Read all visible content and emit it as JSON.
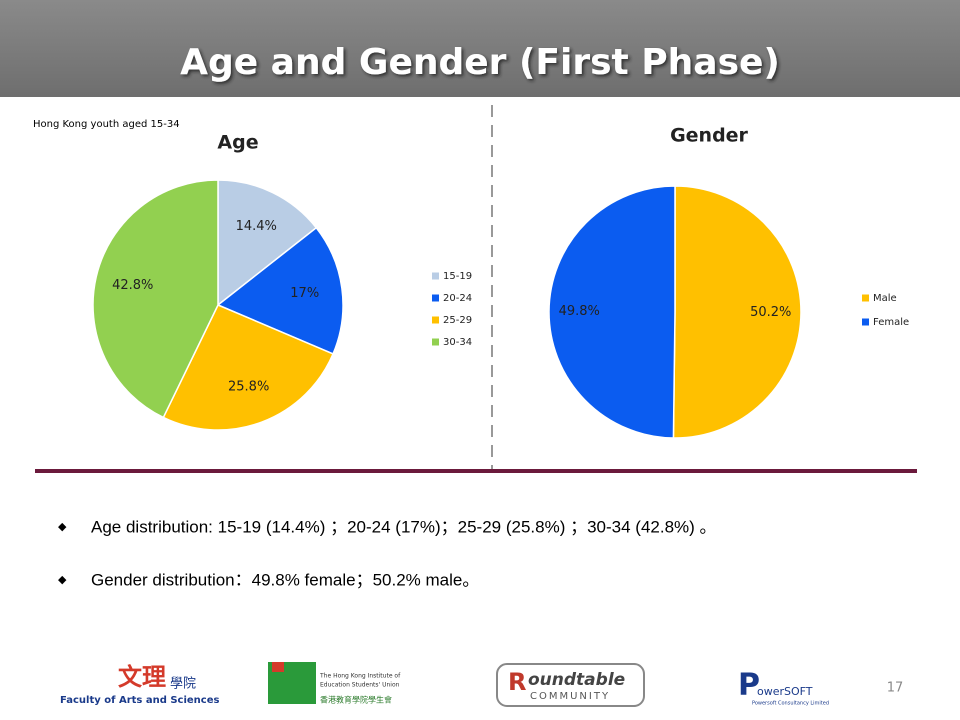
{
  "title": "Age and Gender (First Phase)",
  "subtitle": "Hong Kong youth aged 15-34",
  "chart_data": [
    {
      "type": "pie",
      "title": "Age",
      "categories": [
        "15-19",
        "20-24",
        "25-29",
        "30-34"
      ],
      "values": [
        14.4,
        17,
        25.8,
        42.8
      ],
      "value_labels": [
        "14.4%",
        "17%",
        "25.8%",
        "42.8%"
      ],
      "colors": [
        "#b9cde5",
        "#0b5cf0",
        "#ffc000",
        "#92d050"
      ],
      "legend": "right"
    },
    {
      "type": "pie",
      "title": "Gender",
      "categories": [
        "Male",
        "Female"
      ],
      "values": [
        50.2,
        49.8
      ],
      "value_labels": [
        "50.2%",
        "49.8%"
      ],
      "colors": [
        "#ffc000",
        "#0b5cf0"
      ],
      "legend": "right"
    }
  ],
  "bullets": [
    "Age distribution: 15-19 (14.4%) ；20-24 (17%)；25-29 (25.8%) ；30-34 (42.8%) 。",
    "Gender distribution：49.8% female；50.2% male。"
  ],
  "page_number": "17",
  "logos": {
    "faculty": [
      "文理",
      "學院",
      "Faculty of Arts and Sciences"
    ],
    "union": [
      "The Hong Kong Institute of",
      "Education Students' Union",
      "香港教育學院學生會"
    ],
    "roundtable": [
      "oundtable",
      "COMMUNITY"
    ],
    "powersoft": [
      "owerSOFT",
      "Powersoft Consultancy Limited"
    ]
  }
}
